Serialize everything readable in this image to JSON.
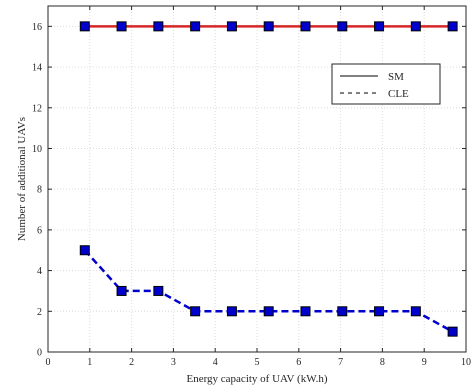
{
  "chart_data": {
    "type": "line",
    "title": "",
    "xlabel": "Energy capacity of UAV (kW.h)",
    "ylabel": "Number of additional UAVs",
    "xlim": [
      0,
      10
    ],
    "ylim": [
      0,
      17
    ],
    "xticks": [
      0,
      1,
      2,
      3,
      4,
      5,
      6,
      7,
      8,
      9,
      10
    ],
    "yticks": [
      0,
      2,
      4,
      6,
      8,
      10,
      12,
      14,
      16
    ],
    "grid": true,
    "legend_position": "top-right",
    "x": [
      0.88,
      1.76,
      2.64,
      3.52,
      4.4,
      5.28,
      6.16,
      7.04,
      7.92,
      8.8,
      9.68
    ],
    "series": [
      {
        "name": "SM",
        "line_style": "solid",
        "line_color": "#d62728",
        "marker": "square",
        "marker_color": "#0000cc",
        "values": [
          16,
          16,
          16,
          16,
          16,
          16,
          16,
          16,
          16,
          16,
          16
        ]
      },
      {
        "name": "CLE",
        "line_style": "dashed",
        "line_color": "#0000cc",
        "marker": "square",
        "marker_color": "#0000cc",
        "values": [
          5,
          3,
          3,
          2,
          2,
          2,
          2,
          2,
          2,
          2,
          1
        ]
      }
    ]
  }
}
